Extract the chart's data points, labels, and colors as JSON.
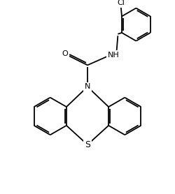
{
  "bg": "#ffffff",
  "lc": "#000000",
  "lw": 1.3,
  "fs": 8.0,
  "xlim": [
    0,
    10
  ],
  "ylim": [
    0,
    11
  ],
  "figsize": [
    2.5,
    2.78
  ],
  "dpi": 100
}
